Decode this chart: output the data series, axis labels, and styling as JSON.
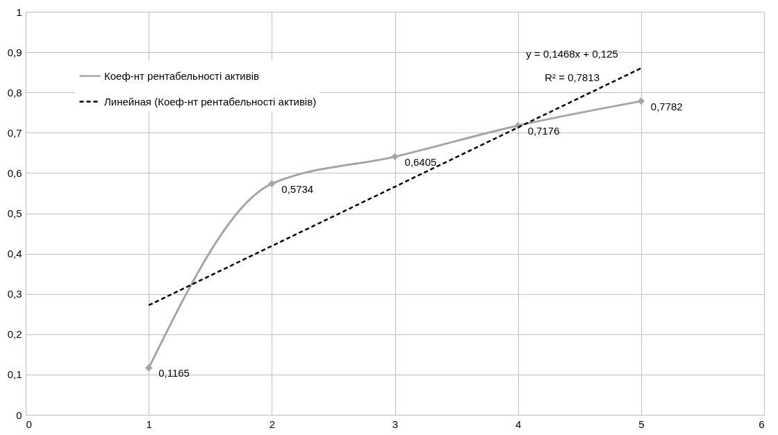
{
  "chart_data": {
    "type": "line",
    "x": [
      1,
      2,
      3,
      4,
      5
    ],
    "series": [
      {
        "name": "Коеф-нт рентабельності активів",
        "color": "#a5a5a5",
        "values": [
          0.1165,
          0.5734,
          0.6405,
          0.7176,
          0.7782
        ],
        "value_labels": [
          "0,1165",
          "0,5734",
          "0,6405",
          "0,7176",
          "0,7782"
        ],
        "marker": "diamond",
        "line_style": "solid"
      },
      {
        "name": "Линейная (Коеф-нт рентабельності активів)",
        "type": "line",
        "color": "#000000",
        "x": [
          1,
          5
        ],
        "values": [
          0.272,
          0.86
        ],
        "marker": "none",
        "line_style": "dashed"
      }
    ],
    "xlim": [
      0,
      6
    ],
    "xticks": [
      0,
      1,
      2,
      3,
      4,
      5,
      6
    ],
    "ylim": [
      0,
      1
    ],
    "yticks": [
      0,
      {
        "value": 0.1,
        "label": "0,1"
      },
      {
        "value": 0.2,
        "label": "0,2"
      },
      {
        "value": 0.3,
        "label": "0,3"
      },
      {
        "value": 0.4,
        "label": "0,4"
      },
      {
        "value": 0.5,
        "label": "0,5"
      },
      {
        "value": 0.6,
        "label": "0,6"
      },
      {
        "value": 0.7,
        "label": "0,7"
      },
      {
        "value": 0.8,
        "label": "0,8"
      },
      {
        "value": 0.9,
        "label": "0,9"
      },
      1
    ],
    "grid": true,
    "legend": "top left",
    "annotations": [
      "y = 0,1468x + 0,125",
      "R² = 0,7813"
    ]
  }
}
